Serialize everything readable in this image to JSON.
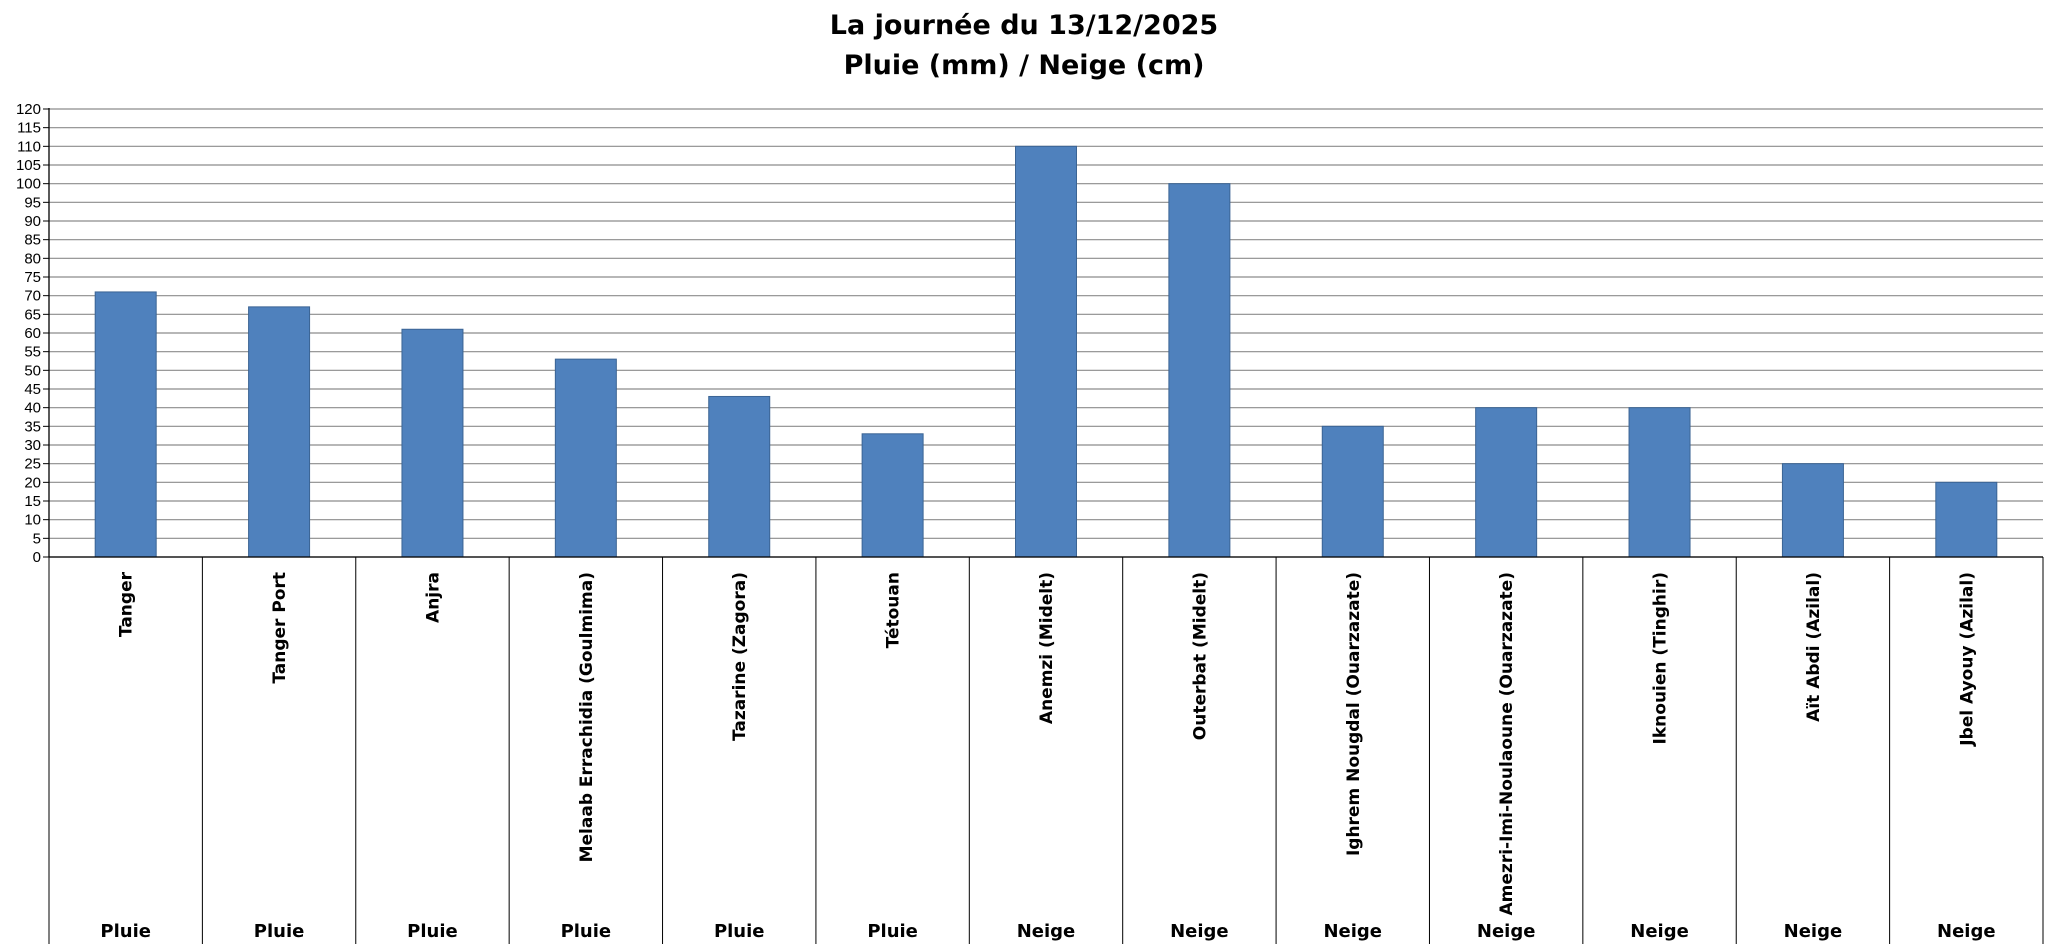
{
  "chart_data": {
    "type": "bar",
    "title": "La journée du 13/12/2025",
    "subtitle": "Pluie (mm) / Neige (cm)",
    "xlabel": "",
    "ylabel": "",
    "ylim": [
      0,
      120
    ],
    "ytick_step": 5,
    "grid": true,
    "legend": "none",
    "bar_color": "#4f81bd",
    "bar_border_color": "#3b6494",
    "grid_color": "#8c8c8c",
    "categories": [
      "Tanger",
      "Tanger Port",
      "Anjra",
      "Melaab Errachidia (Goulmima)",
      "Tazarine (Zagora)",
      "Tétouan",
      "Anemzi (Midelt)",
      "Outerbat (Midelt)",
      "Ighrem Nougdal (Ouarzazate)",
      "Amezri-Imi-Noulaoune (Ouarzazate)",
      "Iknouien (Tinghir)",
      "Aït Abdi (Azilal)",
      "Jbel Ayouy (Azilal)"
    ],
    "group_labels": [
      "Pluie",
      "Pluie",
      "Pluie",
      "Pluie",
      "Pluie",
      "Pluie",
      "Neige",
      "Neige",
      "Neige",
      "Neige",
      "Neige",
      "Neige",
      "Neige"
    ],
    "values": [
      71,
      67,
      61,
      53,
      43,
      33,
      110,
      100,
      35,
      40,
      40,
      25,
      20
    ]
  }
}
